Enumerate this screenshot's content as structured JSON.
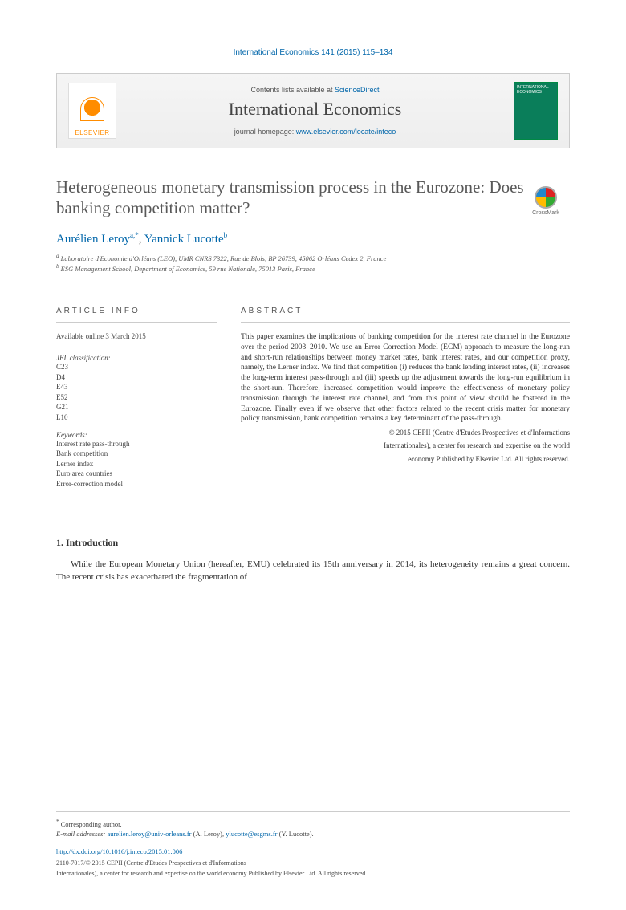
{
  "header": {
    "citation": "International Economics 141 (2015) 115–134"
  },
  "banner": {
    "publisher_logo_text": "ELSEVIER",
    "contents_prefix": "Contents lists available at ",
    "contents_link": "ScienceDirect",
    "journal_name": "International Economics",
    "homepage_prefix": "journal homepage: ",
    "homepage_url": "www.elsevier.com/locate/inteco",
    "cover_title": "INTERNATIONAL ECONOMICS"
  },
  "crossmark": {
    "label": "CrossMark"
  },
  "title": "Heterogeneous monetary transmission process in the Eurozone: Does banking competition matter?",
  "authors": {
    "a1_name": "Aurélien Leroy",
    "a1_marks": "a,*",
    "sep": ", ",
    "a2_name": "Yannick Lucotte",
    "a2_marks": "b"
  },
  "affiliations": {
    "a": "Laboratoire d'Economie d'Orléans (LEO), UMR CNRS 7322, Rue de Blois, BP 26739, 45062 Orléans Cedex 2, France",
    "b": "ESG Management School, Department of Economics, 59 rue Nationale, 75013 Paris, France"
  },
  "info": {
    "heading": "ARTICLE INFO",
    "available": "Available online 3 March 2015",
    "jel_label": "JEL classification:",
    "jel": [
      "C23",
      "D4",
      "E43",
      "E52",
      "G21",
      "L10"
    ],
    "kw_label": "Keywords:",
    "keywords": [
      "Interest rate pass-through",
      "Bank competition",
      "Lerner index",
      "Euro area countries",
      "Error-correction model"
    ]
  },
  "abstract": {
    "heading": "ABSTRACT",
    "text": "This paper examines the implications of banking competition for the interest rate channel in the Eurozone over the period 2003–2010. We use an Error Correction Model (ECM) approach to measure the long-run and short-run relationships between money market rates, bank interest rates, and our competition proxy, namely, the Lerner index. We find that competition (i) reduces the bank lending interest rates, (ii) increases the long-term interest pass-through and (iii) speeds up the adjustment towards the long-run equilibrium in the short-run. Therefore, increased competition would improve the effectiveness of monetary policy transmission through the interest rate channel, and from this point of view should be fostered in the Eurozone. Finally even if we observe that other factors related to the recent crisis matter for monetary policy transmission, bank competition remains a key determinant of the pass-through.",
    "copyright1": "© 2015 CEPII (Centre d'Etudes Prospectives et d'Informations",
    "copyright2": "Internationales), a center for research and expertise on the world",
    "copyright3": "economy Published by Elsevier Ltd. All rights reserved."
  },
  "section1": {
    "heading": "1.  Introduction",
    "para": "While the European Monetary Union (hereafter, EMU) celebrated its 15th anniversary in 2014, its heterogeneity remains a great concern. The recent crisis has exacerbated the fragmentation of"
  },
  "footer": {
    "corr": "Corresponding author.",
    "email_label": "E-mail addresses: ",
    "email1": "aurelien.leroy@univ-orleans.fr",
    "email1_who": " (A. Leroy), ",
    "email2": "ylucotte@esgms.fr",
    "email2_who": " (Y. Lucotte).",
    "doi": "http://dx.doi.org/10.1016/j.inteco.2015.01.006",
    "issn1": "2110-7017/© 2015 CEPII (Centre d'Etudes Prospectives et d'Informations",
    "issn2": "Internationales), a center for research and expertise on the world economy Published by Elsevier Ltd. All rights reserved."
  }
}
